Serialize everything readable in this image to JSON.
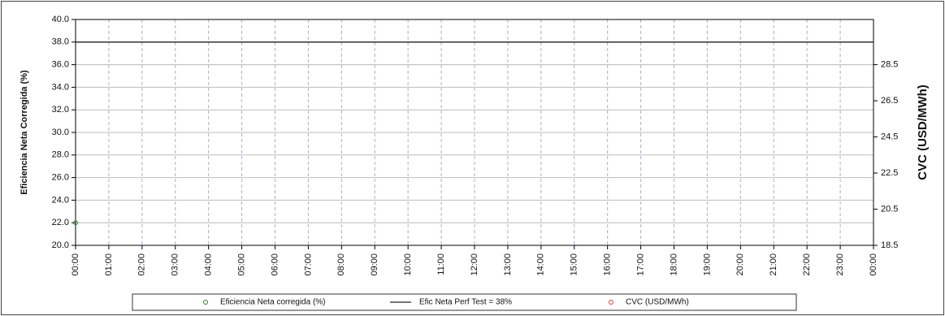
{
  "chart_data": {
    "type": "line",
    "y_label": "Eficiencia Neta Corregida (%)",
    "y2_label": "CVC (USD/MWh)",
    "categories": [
      "00:00",
      "01:00",
      "02:00",
      "03:00",
      "04:00",
      "05:00",
      "06:00",
      "07:00",
      "08:00",
      "09:00",
      "10:00",
      "11:00",
      "12:00",
      "13:00",
      "14:00",
      "15:00",
      "16:00",
      "17:00",
      "18:00",
      "19:00",
      "20:00",
      "21:00",
      "22:00",
      "23:00",
      "00:00"
    ],
    "ylim": [
      20,
      40
    ],
    "yticks": [
      {
        "value": 20,
        "label": "20.0"
      },
      {
        "value": 22,
        "label": "22.0"
      },
      {
        "value": 24,
        "label": "24.0"
      },
      {
        "value": 26,
        "label": "26.0"
      },
      {
        "value": 28,
        "label": "28.0"
      },
      {
        "value": 30,
        "label": "30.0"
      },
      {
        "value": 32,
        "label": "32.0"
      },
      {
        "value": 34,
        "label": "34.0"
      },
      {
        "value": 36,
        "label": "36.0"
      },
      {
        "value": 38,
        "label": "38.0"
      },
      {
        "value": 40,
        "label": "40.0"
      }
    ],
    "y2lim": [
      18.5,
      31
    ],
    "y2ticks": [
      18.5,
      20.5,
      22.5,
      24.5,
      26.5,
      28.5
    ],
    "grid": true,
    "series": [
      {
        "name": "Eficiencia Neta corregida (%)",
        "color": "#2e7d32",
        "style": "markers",
        "values": [
          22,
          null,
          null,
          null,
          null,
          null,
          null,
          null,
          null,
          null,
          null,
          null,
          null,
          null,
          null,
          null,
          null,
          null,
          null,
          null,
          null,
          null,
          null,
          null,
          null
        ]
      },
      {
        "name": "Efic Neta Perf Test = 38%",
        "color": "#222222",
        "style": "line",
        "values": [
          38,
          38,
          38,
          38,
          38,
          38,
          38,
          38,
          38,
          38,
          38,
          38,
          38,
          38,
          38,
          38,
          38,
          38,
          38,
          38,
          38,
          38,
          38,
          38,
          38
        ]
      },
      {
        "name": "CVC (USD/MWh)",
        "color": "#e53935",
        "style": "markers",
        "axis": "y2",
        "values": [
          null,
          null,
          null,
          null,
          null,
          null,
          null,
          null,
          null,
          null,
          null,
          null,
          null,
          null,
          null,
          null,
          null,
          null,
          null,
          null,
          null,
          null,
          null,
          null,
          null
        ]
      }
    ]
  }
}
